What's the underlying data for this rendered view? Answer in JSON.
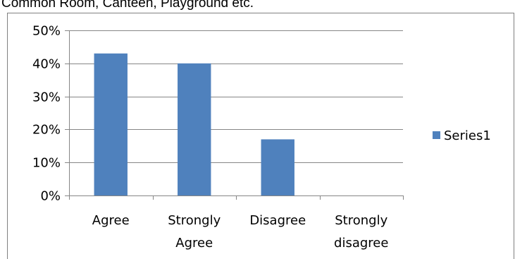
{
  "caption": "Common Room, Canteen, Playground etc.",
  "chart_data": {
    "type": "bar",
    "categories": [
      "Agree",
      "Strongly Agree",
      "Disagree",
      "Strongly disagree"
    ],
    "category_lines": [
      [
        "Agree"
      ],
      [
        "Strongly",
        "Agree"
      ],
      [
        "Disagree"
      ],
      [
        "Strongly",
        "disagree"
      ]
    ],
    "series": [
      {
        "name": "Series1",
        "values": [
          43,
          40,
          17,
          0
        ],
        "color": "#4F81BD"
      }
    ],
    "yticks": [
      "0%",
      "10%",
      "20%",
      "30%",
      "40%",
      "50%"
    ],
    "ylim": [
      0,
      50
    ],
    "grid": true,
    "legend_placement": "right",
    "title": "",
    "xlabel": "",
    "ylabel": ""
  }
}
